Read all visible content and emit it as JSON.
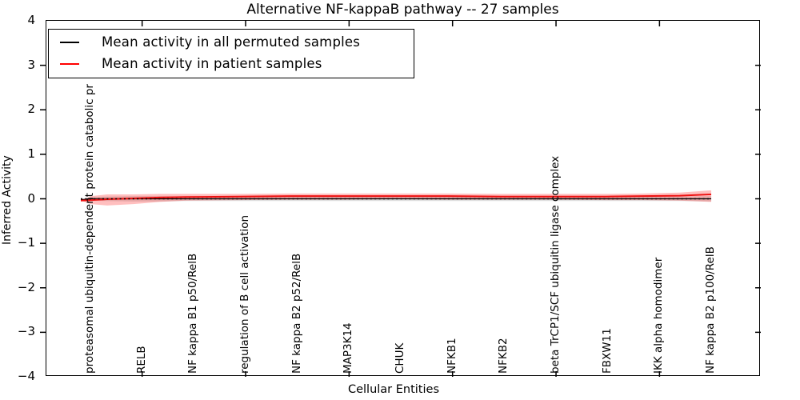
{
  "figure": {
    "title": "Alternative NF-kappaB pathway -- 27 samples"
  },
  "chart_data": {
    "type": "line",
    "title": "Alternative NF-kappaB pathway -- 27 samples",
    "xlabel": "Cellular Entities",
    "ylabel": "Inferred Activity",
    "ylim": [
      -4,
      4
    ],
    "ytick_values": [
      4,
      3,
      2,
      1,
      0,
      -1,
      -2,
      -3,
      -4
    ],
    "ytick_labels": [
      "4",
      "3",
      "2",
      "1",
      "0",
      "−1",
      "−2",
      "−3",
      "−4"
    ],
    "grid": false,
    "legend_position": "upper left",
    "categories": [
      "proteasomal ubiquitin-dependent protein catabolic pr",
      "RELB",
      "NF kappa B1 p50/RelB",
      "regulation of B cell activation",
      "NF kappa B2 p52/RelB",
      "MAP3K14",
      "CHUK",
      "NFKB1",
      "NFKB2",
      "beta TrCP1/SCF ubiquitin ligase complex",
      "FBXW11",
      "IKK alpha homodimer",
      "NF kappa B2 p100/RelB"
    ],
    "x": [
      0,
      0.2,
      0.5,
      1,
      1.5,
      2,
      3,
      4,
      5,
      6,
      7,
      8,
      9,
      10,
      10.7,
      11.4,
      12
    ],
    "series": [
      {
        "name": "Mean activity in all permuted samples",
        "color": "#000000",
        "line_width": 1.2,
        "y": [
          -0.02,
          0,
          0,
          0,
          0,
          0,
          0,
          0,
          0,
          0,
          0,
          0,
          0,
          0,
          0,
          0,
          0
        ],
        "band": {
          "color": "rgba(0,0,0,0.13)",
          "upper": [
            -0.02,
            0.04,
            0.05,
            0.06,
            0.06,
            0.05,
            0.05,
            0.05,
            0.05,
            0.05,
            0.05,
            0.05,
            0.05,
            0.05,
            0.05,
            0.05,
            0.06
          ],
          "lower": [
            -0.02,
            -0.04,
            -0.05,
            -0.06,
            -0.06,
            -0.05,
            -0.05,
            -0.05,
            -0.05,
            -0.05,
            -0.05,
            -0.05,
            -0.05,
            -0.05,
            -0.05,
            -0.05,
            -0.06
          ]
        }
      },
      {
        "name": "Mean activity in patient samples",
        "color": "#ee1111",
        "line_width": 2,
        "y": [
          -0.04,
          -0.03,
          -0.01,
          0.01,
          0.03,
          0.04,
          0.05,
          0.06,
          0.06,
          0.06,
          0.06,
          0.05,
          0.05,
          0.05,
          0.06,
          0.07,
          0.1
        ],
        "band": {
          "color": "rgba(255,0,0,0.25)",
          "upper": [
            -0.04,
            0.06,
            0.1,
            0.1,
            0.11,
            0.11,
            0.11,
            0.12,
            0.12,
            0.12,
            0.12,
            0.11,
            0.11,
            0.11,
            0.12,
            0.14,
            0.19
          ],
          "lower": [
            -0.04,
            -0.12,
            -0.15,
            -0.12,
            -0.07,
            -0.04,
            -0.03,
            -0.02,
            -0.02,
            -0.01,
            -0.02,
            -0.02,
            -0.02,
            -0.03,
            -0.03,
            -0.04,
            -0.07
          ]
        }
      }
    ],
    "zero_line": {
      "y": 0,
      "style": "dotted",
      "color": "#000000"
    },
    "legend_colors": {
      "permuted": "#000000",
      "patient": "#ff0000"
    }
  }
}
